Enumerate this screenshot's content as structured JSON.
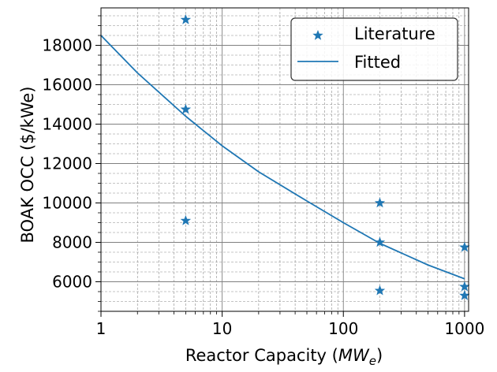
{
  "chart_data": {
    "type": "scatter",
    "xscale": "log",
    "xlim": [
      1,
      1080
    ],
    "ylim": [
      4500,
      19900
    ],
    "grid": true,
    "legend_position": "top-right",
    "xlabel": "Reactor Capacity (MWe)",
    "xlabel_parts": {
      "prefix": "Reactor Capacity (",
      "main": "MW",
      "sub": "e",
      "suffix": ")"
    },
    "ylabel": "BOAK OCC ($/kWe)",
    "x_ticks": [
      {
        "value": 1,
        "label": "1"
      },
      {
        "value": 10,
        "label": "10"
      },
      {
        "value": 100,
        "label": "100"
      },
      {
        "value": 1000,
        "label": "1000"
      }
    ],
    "y_ticks": [
      {
        "value": 6000,
        "label": "6000"
      },
      {
        "value": 8000,
        "label": "8000"
      },
      {
        "value": 10000,
        "label": "10000"
      },
      {
        "value": 12000,
        "label": "12000"
      },
      {
        "value": 14000,
        "label": "14000"
      },
      {
        "value": 16000,
        "label": "16000"
      },
      {
        "value": 18000,
        "label": "18000"
      }
    ],
    "series": [
      {
        "name": "Literature",
        "marker": "star",
        "color": "#1f77b4",
        "points": [
          {
            "x": 5,
            "y": 19300
          },
          {
            "x": 5,
            "y": 14750
          },
          {
            "x": 5,
            "y": 9100
          },
          {
            "x": 200,
            "y": 10000
          },
          {
            "x": 200,
            "y": 8000
          },
          {
            "x": 200,
            "y": 5550
          },
          {
            "x": 1000,
            "y": 7750
          },
          {
            "x": 1000,
            "y": 5750
          },
          {
            "x": 1000,
            "y": 5300
          }
        ]
      },
      {
        "name": "Fitted",
        "style": "line",
        "color": "#1f77b4",
        "points": [
          {
            "x": 1,
            "y": 18500
          },
          {
            "x": 2,
            "y": 16600
          },
          {
            "x": 5,
            "y": 14400
          },
          {
            "x": 10,
            "y": 12900
          },
          {
            "x": 20,
            "y": 11580
          },
          {
            "x": 50,
            "y": 10100
          },
          {
            "x": 100,
            "y": 9000
          },
          {
            "x": 200,
            "y": 7950
          },
          {
            "x": 500,
            "y": 6850
          },
          {
            "x": 1000,
            "y": 6150
          }
        ]
      }
    ]
  }
}
